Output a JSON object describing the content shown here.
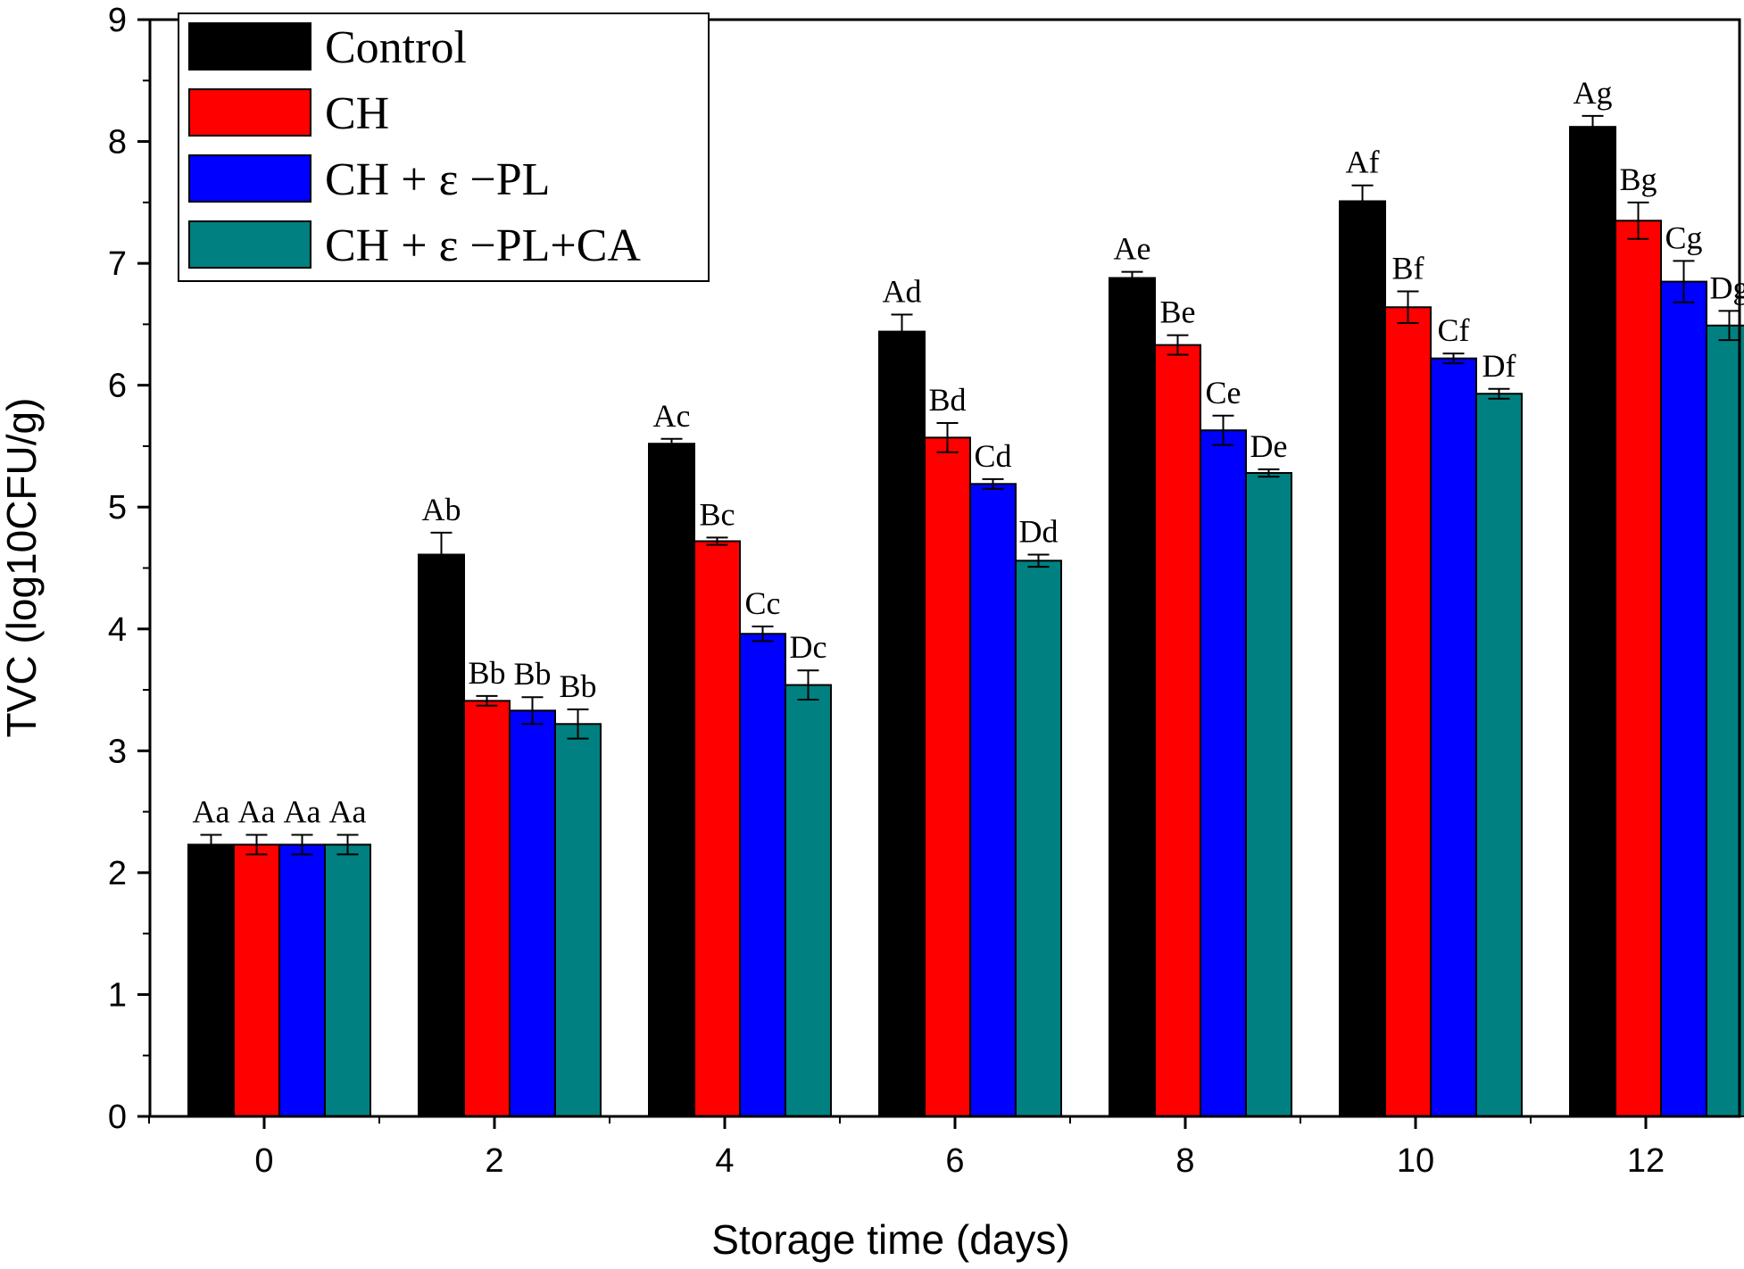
{
  "chart_data": {
    "type": "bar",
    "title": "",
    "xlabel": "Storage time (days)",
    "ylabel": "TVC (log10CFU/g)",
    "ylim": [
      0,
      9
    ],
    "yticks": [
      "0",
      "1",
      "2",
      "3",
      "4",
      "5",
      "6",
      "7",
      "8",
      "9"
    ],
    "categories": [
      "0",
      "2",
      "4",
      "6",
      "8",
      "10",
      "12"
    ],
    "grid": false,
    "legend_position": "top-left",
    "series": [
      {
        "name": "Control",
        "color": "#000000",
        "values": [
          2.23,
          4.61,
          5.52,
          6.44,
          6.88,
          7.51,
          8.12
        ],
        "errors": [
          0.08,
          0.18,
          0.04,
          0.14,
          0.05,
          0.13,
          0.09
        ],
        "labels": [
          "Aa",
          "Ab",
          "Ac",
          "Ad",
          "Ae",
          "Af",
          "Ag"
        ]
      },
      {
        "name": "CH",
        "color": "#ff0000",
        "values": [
          2.23,
          3.41,
          4.72,
          5.57,
          6.33,
          6.64,
          7.35
        ],
        "errors": [
          0.08,
          0.04,
          0.03,
          0.12,
          0.08,
          0.13,
          0.15
        ],
        "labels": [
          "Aa",
          "Bb",
          "Bc",
          "Bd",
          "Be",
          "Bf",
          "Bg"
        ]
      },
      {
        "name": "CH + ε −PL",
        "color": "#0000ff",
        "values": [
          2.23,
          3.33,
          3.96,
          5.19,
          5.63,
          6.22,
          6.85
        ],
        "errors": [
          0.08,
          0.11,
          0.06,
          0.04,
          0.12,
          0.04,
          0.17
        ],
        "labels": [
          "Aa",
          "Bb",
          "Cc",
          "Cd",
          "Ce",
          "Cf",
          "Cg"
        ]
      },
      {
        "name": "CH + ε −PL+CA",
        "color": "#008080",
        "values": [
          2.23,
          3.22,
          3.54,
          4.56,
          5.28,
          5.93,
          6.49
        ],
        "errors": [
          0.08,
          0.12,
          0.12,
          0.05,
          0.03,
          0.04,
          0.12
        ],
        "labels": [
          "Aa",
          "Bb",
          "Dc",
          "Dd",
          "De",
          "Df",
          "Dg"
        ]
      }
    ]
  }
}
